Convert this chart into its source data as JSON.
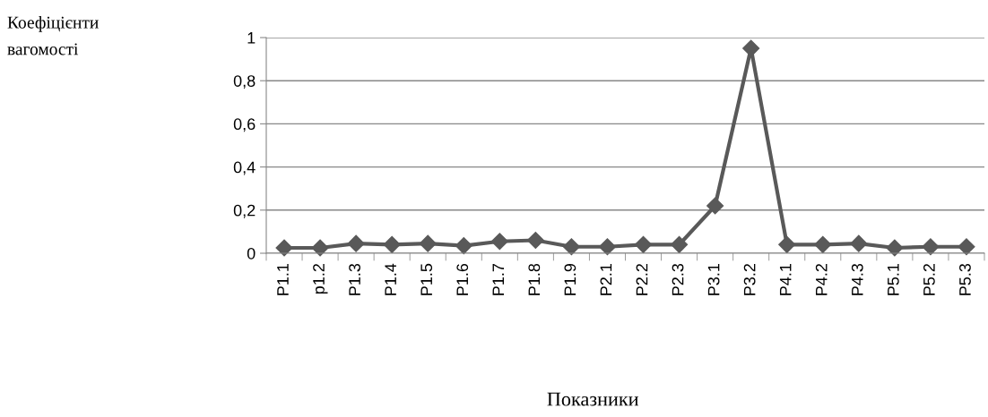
{
  "chart_data": {
    "type": "line",
    "annotations": [
      "Коефіцієнти вагомості"
    ],
    "xlabel": "Показники",
    "categories": [
      "P1.1",
      "p1.2",
      "P1.3",
      "P1.4",
      "P1.5",
      "P1.6",
      "P1.7",
      "P1.8",
      "P1.9",
      "P2.1",
      "P2.2",
      "P2.3",
      "P3.1",
      "P3.2",
      "P4.1",
      "P4.2",
      "P4.3",
      "P5.1",
      "P5.2",
      "P5.3"
    ],
    "series": [
      {
        "color": "#595959",
        "values": [
          0.025,
          0.025,
          0.045,
          0.04,
          0.045,
          0.035,
          0.055,
          0.06,
          0.03,
          0.03,
          0.04,
          0.04,
          0.22,
          0.95,
          0.04,
          0.04,
          0.045,
          0.025,
          0.03,
          0.03
        ]
      }
    ],
    "ylim": [
      0,
      1
    ],
    "yticks": [
      0,
      {
        "value": 0.2,
        "label": "0,2"
      },
      {
        "value": 0.4,
        "label": "0,4"
      },
      {
        "value": 0.6,
        "label": "0,6"
      },
      {
        "value": 0.8,
        "label": "0,8"
      },
      1
    ],
    "grid": "y",
    "marker": "diamond",
    "line_style": "solid",
    "legend": false
  }
}
